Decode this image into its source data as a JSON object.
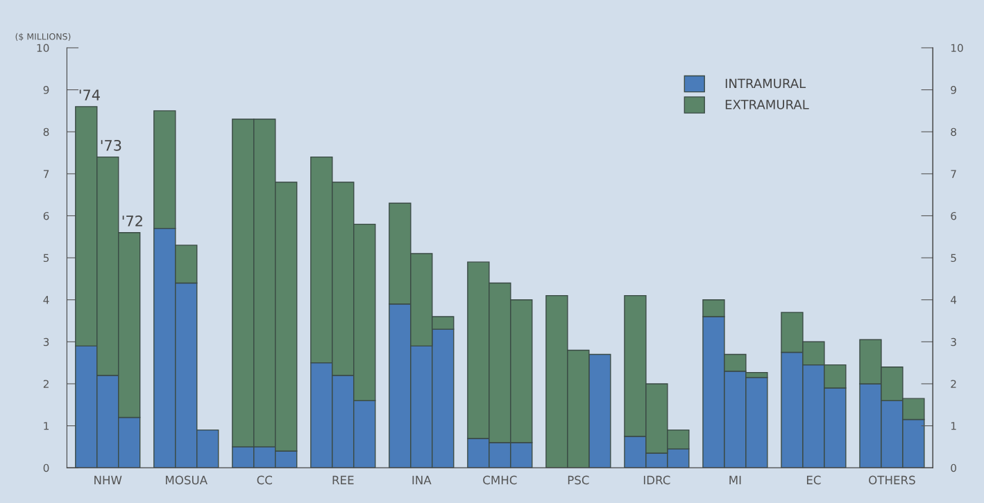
{
  "chart_data": {
    "type": "bar",
    "stacked": true,
    "ylabel": "($ MILLIONS)",
    "categories": [
      null,
      "NHW",
      null,
      null,
      "MOSUA",
      null,
      null,
      "CC",
      null,
      null,
      "REE",
      null,
      null,
      "INA",
      null,
      null,
      "CMHC",
      null,
      null,
      "PSC",
      null,
      null,
      "IDRC",
      null,
      null,
      "MI",
      null,
      null,
      "EC",
      null,
      null,
      "OTHERS",
      null
    ],
    "series": [
      {
        "name": "INTRAMURAL",
        "color": "#4a7cba",
        "values": [
          2.9,
          2.2,
          1.2,
          5.7,
          4.4,
          0.9,
          0.5,
          0.5,
          0.4,
          2.5,
          2.2,
          1.6,
          3.9,
          2.9,
          3.3,
          0.7,
          0.6,
          0.6,
          0,
          0,
          2.7,
          0.75,
          0.35,
          0.45,
          3.6,
          2.3,
          2.15,
          2.75,
          2.45,
          1.9,
          2.0,
          1.6,
          1.15
        ]
      },
      {
        "name": "EXTRAMURAL",
        "color": "#5b8568",
        "values": [
          5.7,
          5.2,
          4.4,
          2.8,
          0.9,
          0,
          7.8,
          7.8,
          6.4,
          4.9,
          4.6,
          4.2,
          2.4,
          2.2,
          0.3,
          4.2,
          3.8,
          3.4,
          4.1,
          2.8,
          0,
          3.35,
          1.65,
          0.45,
          0.4,
          0.4,
          0.12,
          0.95,
          0.55,
          0.55,
          1.05,
          0.8,
          0.5
        ]
      }
    ],
    "annotations": [
      "'74",
      "'73",
      "'72"
    ],
    "ylim": [
      0,
      10
    ],
    "yticks": [
      0,
      1,
      2,
      3,
      4,
      5,
      6,
      7,
      8,
      9,
      10
    ],
    "y2lim": [
      0,
      10
    ],
    "y2ticks": [
      0,
      1,
      2,
      3,
      4,
      5,
      6,
      7,
      8,
      9,
      10
    ],
    "legend": "top right",
    "grid": false
  }
}
